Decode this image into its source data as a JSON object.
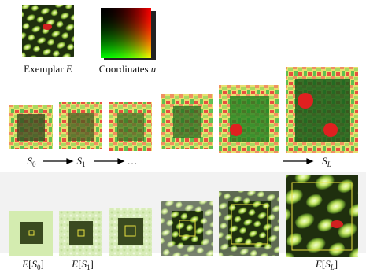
{
  "exemplar_label": {
    "text": "Exemplar",
    "var": "E"
  },
  "coords_label": {
    "text": "Coordinates",
    "var": "u"
  },
  "sequence_labels": [
    {
      "base": "S",
      "sub": "0"
    },
    {
      "base": "S",
      "sub": "1"
    },
    {
      "text": "…"
    },
    {
      "base": "S",
      "sub": "L"
    }
  ],
  "exemplar_labels": [
    {
      "func": "E",
      "open": "[",
      "base": "S",
      "sub": "0",
      "close": "]"
    },
    {
      "func": "E",
      "open": "[",
      "base": "S",
      "sub": "1",
      "close": "]"
    },
    {
      "func": "E",
      "open": "[",
      "base": "S",
      "sub": "L",
      "close": "]"
    }
  ]
}
